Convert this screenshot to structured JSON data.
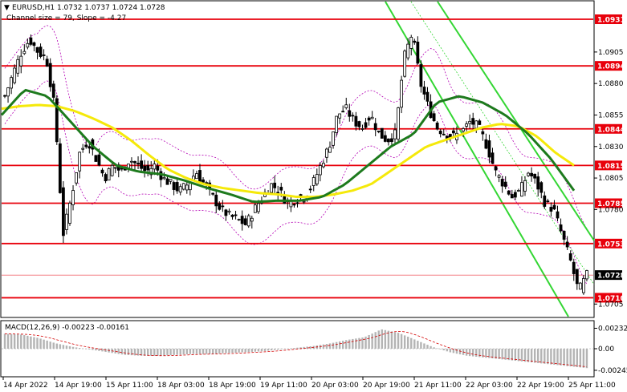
{
  "header": {
    "symbol_line": "EURUSD,H1  1.0732 1.0737 1.0724 1.0728",
    "channel_line": "Channel size = 79, Slope = -4.27"
  },
  "macd": {
    "label": "MACD(12,26,9) -0.00223 -0.00161",
    "ticks": [
      "0.00232",
      "0.00",
      "-0.00245"
    ]
  },
  "colors": {
    "candle": "#000000",
    "level_line": "#e8000b",
    "tag_bg": "#e8000b",
    "current_bg": "#000000",
    "ma_yellow": "#f5e90a",
    "ma_green": "#1d7a1d",
    "channel_green": "#33d633",
    "bollinger": "#b400b4",
    "macd_bar": "#b4b4b4",
    "signal": "#d40000"
  },
  "chart_data": {
    "type": "candlestick",
    "symbol": "EURUSD",
    "timeframe": "H1",
    "ohlc_last": {
      "open": 1.0732,
      "high": 1.0737,
      "low": 1.0724,
      "close": 1.0728
    },
    "price_axis_ticks": [
      "1.0931",
      "1.0905",
      "1.0894",
      "1.0880",
      "1.0855",
      "1.0844",
      "1.0830",
      "1.0815",
      "1.0805",
      "1.0785",
      "1.0780",
      "1.0753",
      "1.0728",
      "1.0710",
      "1.0705"
    ],
    "levels": [
      {
        "label": "1.0931",
        "value": 1.0931
      },
      {
        "label": "1.0894",
        "value": 1.0894
      },
      {
        "label": "1.0844",
        "value": 1.0844
      },
      {
        "label": "1.0815",
        "value": 1.0815
      },
      {
        "label": "1.0785",
        "value": 1.0785
      },
      {
        "label": "1.0753",
        "value": 1.0753
      },
      {
        "label": "1.0710",
        "value": 1.071
      }
    ],
    "current_price": {
      "label": "1.0728",
      "value": 1.0728
    },
    "xlabels": [
      "14 Apr 2022",
      "14 Apr 19:00",
      "15 Apr 11:00",
      "18 Apr 03:00",
      "18 Apr 19:00",
      "19 Apr 11:00",
      "20 Apr 03:00",
      "20 Apr 19:00",
      "21 Apr 11:00",
      "22 Apr 03:00",
      "22 Apr 19:00",
      "25 Apr 11:00"
    ],
    "close_path": [
      1.087,
      1.0888,
      1.0905,
      1.0915,
      1.0905,
      1.09,
      1.086,
      1.076,
      1.079,
      1.0825,
      1.0835,
      1.082,
      1.0805,
      1.0815,
      1.081,
      1.082,
      1.0815,
      1.081,
      1.0815,
      1.0805,
      1.08,
      1.0795,
      1.08,
      1.081,
      1.08,
      1.079,
      1.078,
      1.0775,
      1.0772,
      1.0768,
      1.078,
      1.079,
      1.08,
      1.0795,
      1.0785,
      1.0788,
      1.079,
      1.08,
      1.0815,
      1.083,
      1.0855,
      1.086,
      1.085,
      1.0845,
      1.0855,
      1.084,
      1.0835,
      1.084,
      1.09,
      1.092,
      1.088,
      1.086,
      1.0845,
      1.084,
      1.0838,
      1.0842,
      1.085,
      1.0845,
      1.083,
      1.081,
      1.08,
      1.079,
      1.0795,
      1.081,
      1.08,
      1.0785,
      1.078,
      1.076,
      1.074,
      1.0715,
      1.0728
    ],
    "ma_yellow_path": [
      1.086,
      1.0862,
      1.0863,
      1.0862,
      1.0858,
      1.0852,
      1.0845,
      1.0835,
      1.0823,
      1.0812,
      1.0805,
      1.08,
      1.0797,
      1.0795,
      1.0793,
      1.0792,
      1.079,
      1.079,
      1.0792,
      1.0795,
      1.08,
      1.081,
      1.082,
      1.083,
      1.0835,
      1.084,
      1.0845,
      1.0848,
      1.0846,
      1.0838,
      1.0825,
      1.0815
    ],
    "ma_green_path": [
      1.0855,
      1.0875,
      1.087,
      1.085,
      1.083,
      1.0815,
      1.081,
      1.0808,
      1.0803,
      1.0797,
      1.0792,
      1.0786,
      1.0787,
      1.0787,
      1.079,
      1.08,
      1.0815,
      1.083,
      1.084,
      1.0865,
      1.087,
      1.0865,
      1.0855,
      1.084,
      1.082,
      1.0795
    ],
    "macd_values": [
      0.0017,
      0.0016,
      0.0012,
      0.0006,
      0.0002,
      -0.0001,
      -0.0004,
      -0.0007,
      -0.0008,
      -0.0008,
      -0.0007,
      -0.0006,
      -0.0006,
      -0.0005,
      -0.0004,
      -0.0003,
      -0.0001,
      0.0001,
      0.0003,
      0.0006,
      0.001,
      0.0013,
      0.0022,
      0.0018,
      0.001,
      0.0002,
      -0.0004,
      -0.0008,
      -0.001,
      -0.0012,
      -0.0014,
      -0.0016,
      -0.0018,
      -0.002,
      -0.0022
    ],
    "macd_ylim": [
      -0.003,
      0.003
    ]
  }
}
